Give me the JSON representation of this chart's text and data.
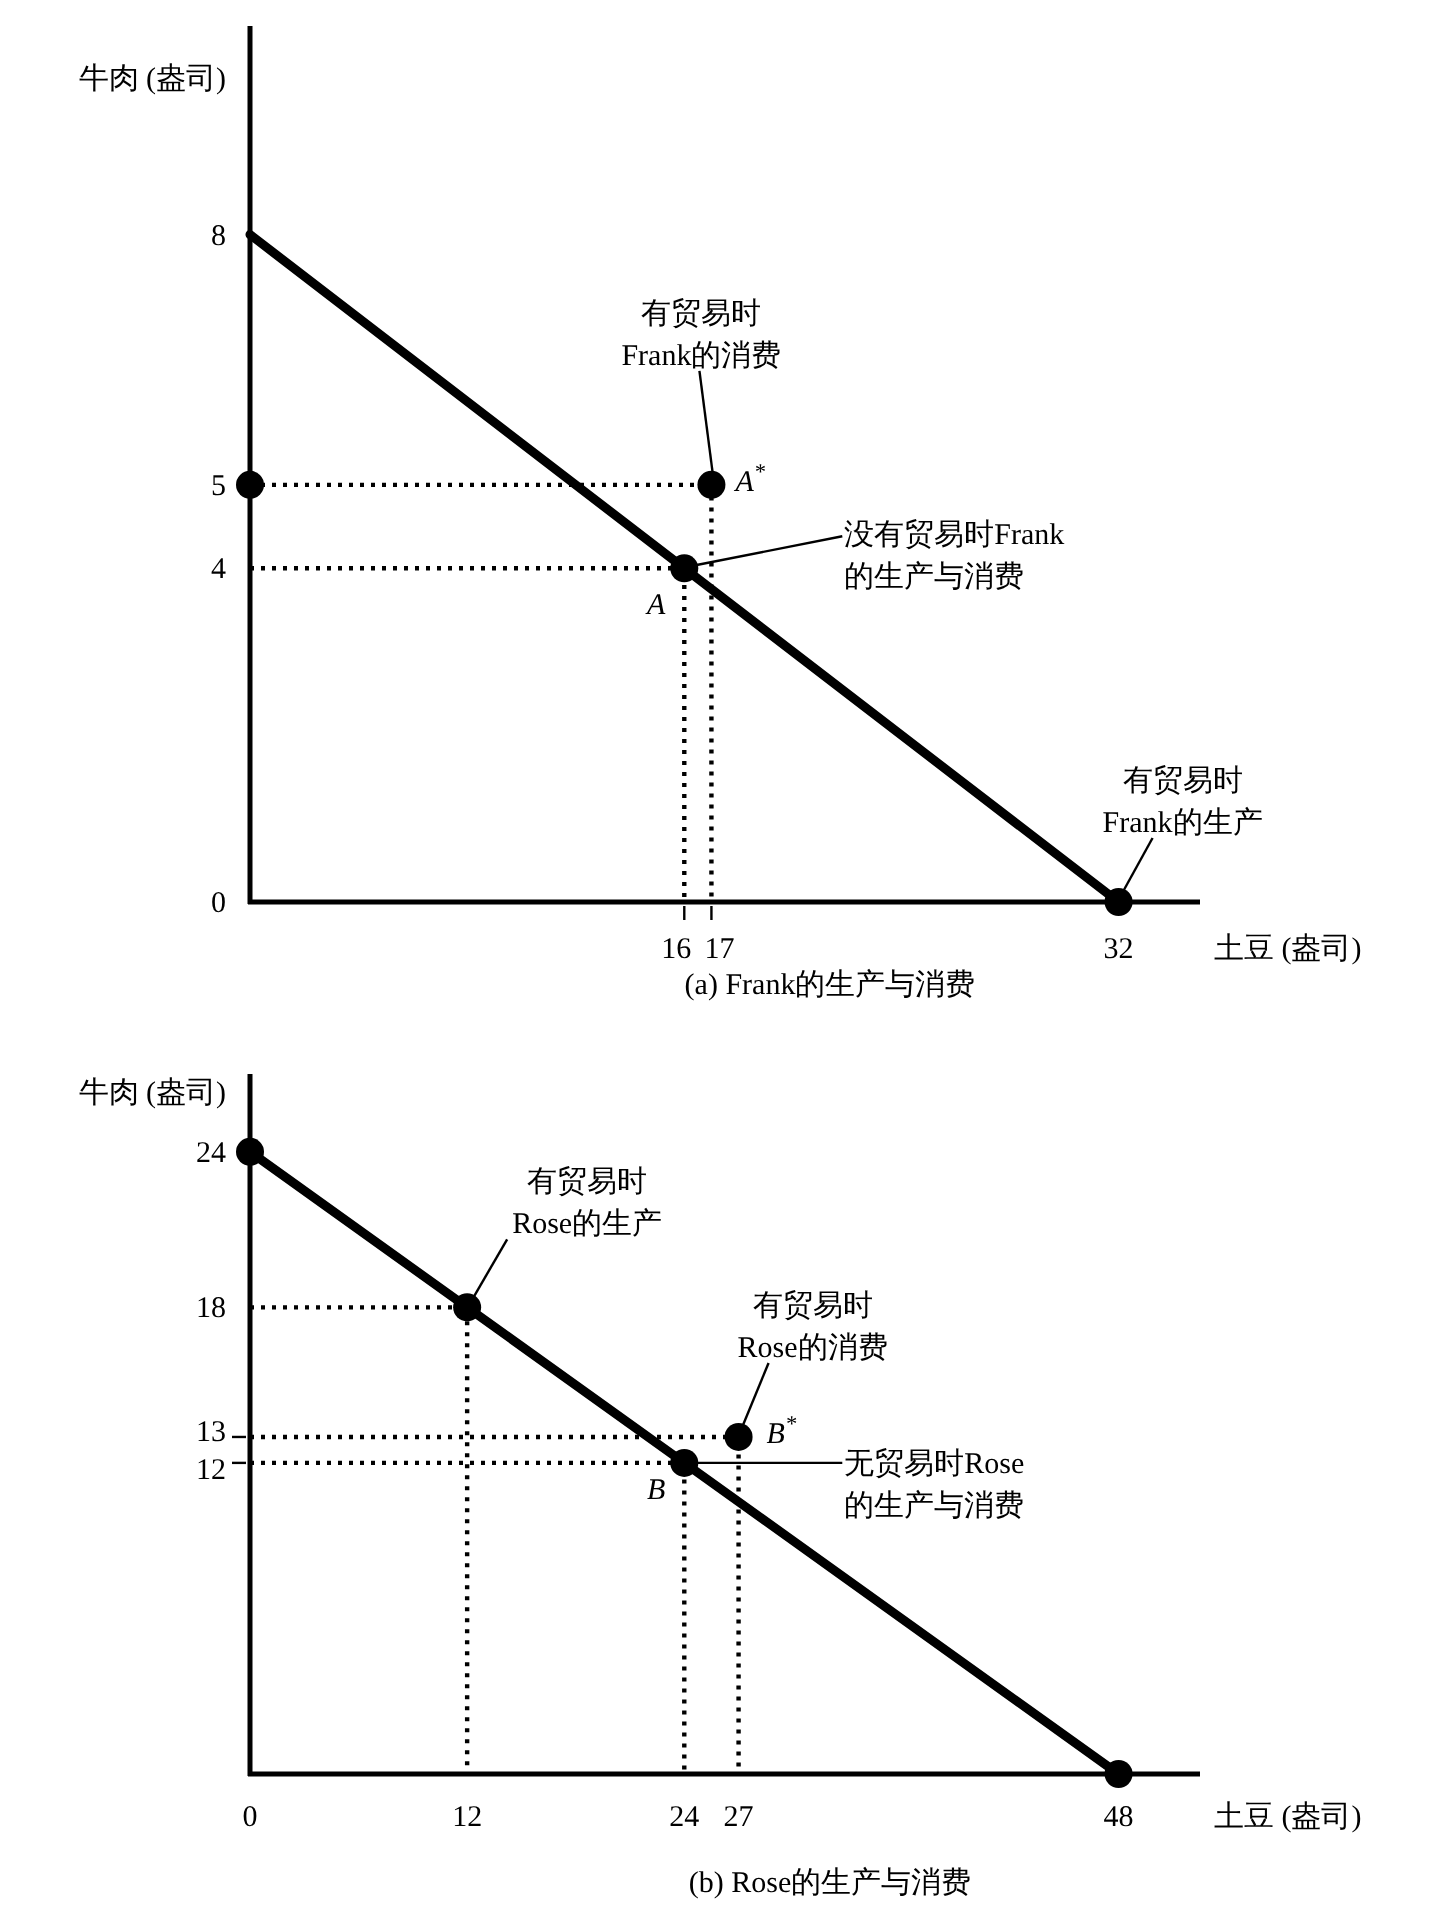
{
  "chart_data": [
    {
      "type": "line",
      "title": "(a)  Frank的生产与消费",
      "xlabel": "土豆 (盎司)",
      "ylabel": "牛肉 (盎司)",
      "xlim": [
        0,
        35
      ],
      "ylim": [
        0,
        10.5
      ],
      "xticks": [
        16,
        17,
        32
      ],
      "yticks": [
        0,
        4,
        5,
        8
      ],
      "series": [
        {
          "type": "line",
          "line_style": "dotted",
          "color": "#000000",
          "x": [
            0,
            17,
            17
          ],
          "values": [
            5,
            5,
            0
          ]
        },
        {
          "type": "line",
          "line_style": "dotted",
          "color": "#000000",
          "x": [
            0,
            16,
            16
          ],
          "values": [
            4,
            4,
            0
          ]
        },
        {
          "type": "line",
          "line_style": "solid",
          "color": "#000000",
          "x": [
            0,
            32
          ],
          "values": [
            8,
            0
          ]
        },
        {
          "type": "scatter",
          "marker": "circle",
          "color": "#000000",
          "x": [
            0,
            16,
            17,
            32
          ],
          "values": [
            5,
            4,
            5,
            0
          ]
        }
      ],
      "annotations": [
        {
          "text": "A",
          "x": 16,
          "y": 4
        },
        {
          "text": "A$^{*}$",
          "x": 17,
          "y": 5
        },
        {
          "text": "有贸易时\nFrank的消费",
          "x": 17,
          "y": 5
        },
        {
          "text": "没有贸易时Frank\n的生产与消费",
          "x": 16,
          "y": 4
        },
        {
          "text": "有贸易时\nFrank的生产",
          "x": 32,
          "y": 0
        }
      ]
    },
    {
      "type": "line",
      "title": "(b)  Rose的生产与消费",
      "xlabel": "土豆 (盎司)",
      "ylabel": "牛肉 (盎司)",
      "xlim": [
        0,
        52.5
      ],
      "ylim": [
        0,
        27
      ],
      "xticks": [
        0,
        12,
        24,
        27,
        48
      ],
      "yticks": [
        12,
        13,
        18,
        24
      ],
      "series": [
        {
          "type": "line",
          "line_style": "dotted",
          "color": "#000000",
          "x": [
            0,
            12,
            12
          ],
          "values": [
            18,
            18,
            0
          ]
        },
        {
          "type": "line",
          "line_style": "dotted",
          "color": "#000000",
          "x": [
            0,
            27,
            27
          ],
          "values": [
            13,
            13,
            0
          ]
        },
        {
          "type": "line",
          "line_style": "dotted",
          "color": "#000000",
          "x": [
            0,
            24,
            24
          ],
          "values": [
            12,
            12,
            0
          ]
        },
        {
          "type": "line",
          "line_style": "solid",
          "color": "#000000",
          "x": [
            0,
            48
          ],
          "values": [
            24,
            0
          ]
        },
        {
          "type": "scatter",
          "marker": "circle",
          "color": "#000000",
          "x": [
            0,
            12,
            24,
            27,
            48
          ],
          "values": [
            24,
            18,
            12,
            13,
            0
          ]
        }
      ],
      "annotations": [
        {
          "text": "B",
          "x": 24,
          "y": 12
        },
        {
          "text": "B$^{*}$",
          "x": 27,
          "y": 13
        },
        {
          "text": "有贸易时\nRose的生产",
          "x": 12,
          "y": 18
        },
        {
          "text": "有贸易时\nRose的消费",
          "x": 27,
          "y": 13
        },
        {
          "text": "无贸易时Rose\n的生产与消费",
          "x": 24,
          "y": 12
        }
      ]
    }
  ]
}
